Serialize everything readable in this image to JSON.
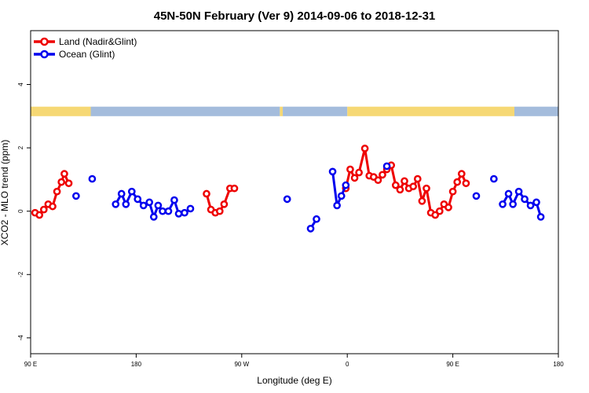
{
  "chart_data": {
    "type": "line",
    "title": "45N-50N February (Ver 9)   2014-09-06 to 2018-12-31",
    "xlabel": "Longitude (deg E)",
    "ylabel": "XCO2 - MLO trend (ppm)",
    "xlim": [
      90,
      450
    ],
    "ylim": [
      -4.5,
      5.7
    ],
    "x_ticks": [
      {
        "value": 90,
        "label": "90 E"
      },
      {
        "value": 162,
        "label": "180"
      },
      {
        "value": 234,
        "label": "90 W"
      },
      {
        "value": 306,
        "label": "0"
      },
      {
        "value": 378,
        "label": "90 E"
      },
      {
        "value": 450,
        "label": "180"
      }
    ],
    "y_ticks": [
      {
        "value": -4,
        "label": "-4"
      },
      {
        "value": -2,
        "label": "-2"
      },
      {
        "value": 0,
        "label": "0"
      },
      {
        "value": 2,
        "label": "2"
      },
      {
        "value": 4,
        "label": "4"
      }
    ],
    "grid": false,
    "legend_position": "top-left",
    "land_ocean_band": {
      "y_range": [
        3.0,
        3.3
      ],
      "land_color": "#f6d874",
      "ocean_color": "#a4bcdc",
      "segments": [
        {
          "type": "land",
          "x0": 90,
          "x1": 131
        },
        {
          "type": "ocean",
          "x0": 131,
          "x1": 260
        },
        {
          "type": "land",
          "x0": 260,
          "x1": 262
        },
        {
          "type": "ocean",
          "x0": 262,
          "x1": 306
        },
        {
          "type": "land",
          "x0": 306,
          "x1": 420
        },
        {
          "type": "ocean",
          "x0": 420,
          "x1": 450
        }
      ]
    },
    "series": [
      {
        "name": "Land (Nadir&Glint)",
        "color": "#ee0000",
        "segments": [
          [
            [
              93,
              -0.05
            ],
            [
              96,
              -0.12
            ],
            [
              99,
              0.05
            ],
            [
              102,
              0.22
            ],
            [
              105,
              0.15
            ],
            [
              108,
              0.62
            ],
            [
              111,
              0.92
            ],
            [
              113,
              1.18
            ],
            [
              116,
              0.88
            ]
          ],
          [
            [
              210,
              0.55
            ],
            [
              213,
              0.05
            ],
            [
              216,
              -0.05
            ],
            [
              219,
              0.0
            ],
            [
              222,
              0.22
            ],
            [
              226,
              0.72
            ],
            [
              229,
              0.72
            ]
          ],
          [
            [
              305,
              0.72
            ],
            [
              308,
              1.32
            ],
            [
              311,
              1.05
            ],
            [
              314,
              1.22
            ],
            [
              318,
              1.98
            ],
            [
              321,
              1.12
            ],
            [
              324,
              1.08
            ],
            [
              327,
              0.98
            ],
            [
              330,
              1.15
            ],
            [
              333,
              1.32
            ],
            [
              336,
              1.45
            ],
            [
              339,
              0.82
            ],
            [
              342,
              0.68
            ],
            [
              345,
              0.95
            ],
            [
              348,
              0.72
            ],
            [
              351,
              0.78
            ],
            [
              354,
              1.02
            ],
            [
              357,
              0.32
            ],
            [
              360,
              0.72
            ],
            [
              363,
              -0.05
            ],
            [
              366,
              -0.12
            ],
            [
              369,
              0.0
            ],
            [
              372,
              0.22
            ],
            [
              375,
              0.12
            ],
            [
              378,
              0.62
            ],
            [
              381,
              0.92
            ],
            [
              384,
              1.18
            ],
            [
              387,
              0.88
            ]
          ]
        ]
      },
      {
        "name": "Ocean (Glint)",
        "color": "#0000ee",
        "segments": [
          [
            [
              121,
              0.48
            ]
          ],
          [
            [
              132,
              1.02
            ]
          ],
          [
            [
              148,
              0.22
            ],
            [
              152,
              0.55
            ],
            [
              155,
              0.22
            ],
            [
              159,
              0.62
            ],
            [
              163,
              0.38
            ],
            [
              167,
              0.18
            ],
            [
              171,
              0.28
            ],
            [
              174,
              -0.18
            ],
            [
              177,
              0.18
            ],
            [
              180,
              0.0
            ],
            [
              184,
              0.0
            ],
            [
              188,
              0.35
            ],
            [
              191,
              -0.08
            ],
            [
              195,
              -0.05
            ],
            [
              199,
              0.08
            ]
          ],
          [
            [
              265,
              0.38
            ]
          ],
          [
            [
              281,
              -0.55
            ],
            [
              285,
              -0.25
            ]
          ],
          [
            [
              296,
              1.25
            ],
            [
              299,
              0.18
            ],
            [
              302,
              0.48
            ],
            [
              305,
              0.82
            ]
          ],
          [
            [
              333,
              1.42
            ]
          ],
          [
            [
              394,
              0.48
            ]
          ],
          [
            [
              406,
              1.02
            ]
          ],
          [
            [
              412,
              0.22
            ],
            [
              416,
              0.55
            ],
            [
              419,
              0.22
            ],
            [
              423,
              0.62
            ],
            [
              427,
              0.38
            ],
            [
              431,
              0.18
            ],
            [
              435,
              0.28
            ],
            [
              438,
              -0.18
            ]
          ]
        ]
      }
    ]
  }
}
